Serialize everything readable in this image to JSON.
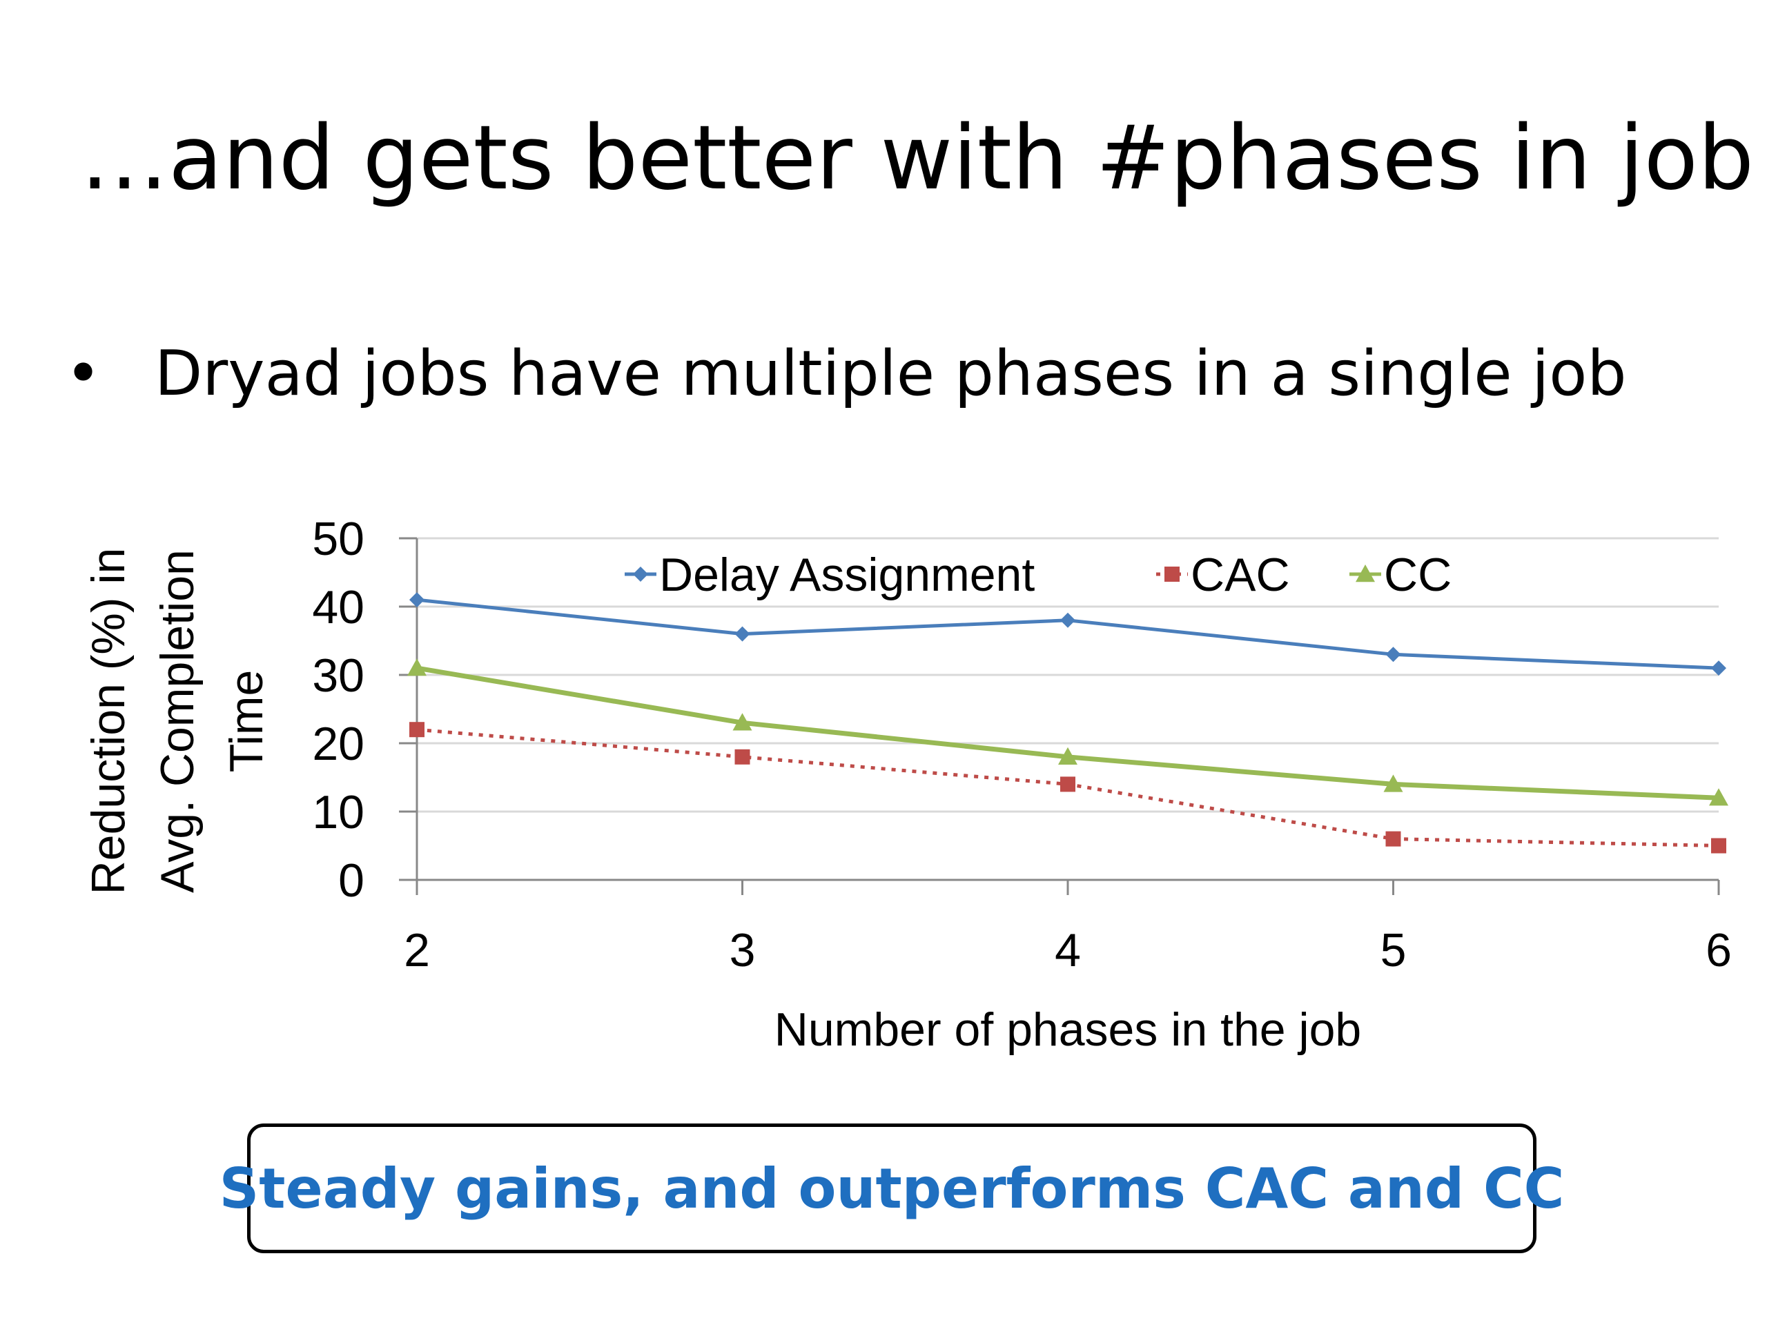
{
  "slide": {
    "title": "…and gets better with #phases in job",
    "bullet_symbol": "•",
    "bullet_text": "Dryad jobs have multiple phases in a single job",
    "callout": "Steady gains, and outperforms CAC and CC",
    "callout_color": "#1f6fc0"
  },
  "chart_data": {
    "type": "line",
    "title": "",
    "xlabel": "Number of phases in the job",
    "ylabel_lines": [
      "Reduction (%) in",
      "Avg. Completion",
      "Time"
    ],
    "x": [
      2,
      3,
      4,
      5,
      6
    ],
    "xlim": [
      2,
      6
    ],
    "ylim": [
      0,
      50
    ],
    "yticks": [
      0,
      10,
      20,
      30,
      40,
      50
    ],
    "grid": true,
    "legend_position": "top",
    "series": [
      {
        "name": "Delay Assignment",
        "values": [
          41,
          36,
          38,
          33,
          31
        ],
        "color": "#4a7ebb",
        "marker": "diamond",
        "line_style": "solid"
      },
      {
        "name": "CAC",
        "values": [
          22,
          18,
          14,
          6,
          5
        ],
        "color": "#be4b48",
        "marker": "square",
        "line_style": "dotted"
      },
      {
        "name": "CC",
        "values": [
          31,
          23,
          18,
          14,
          12
        ],
        "color": "#98b954",
        "marker": "triangle",
        "line_style": "solid"
      }
    ]
  }
}
